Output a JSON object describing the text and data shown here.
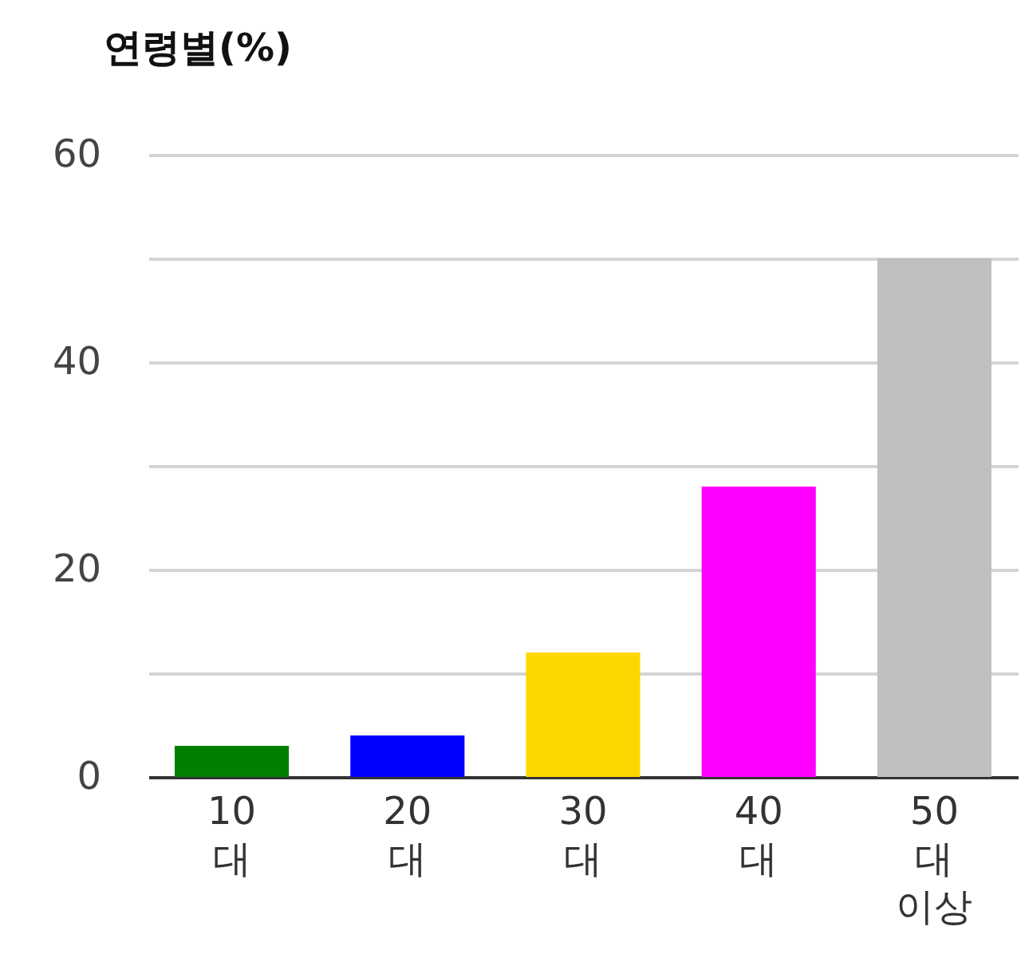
{
  "chart_data": {
    "type": "bar",
    "title": "연령별(%)",
    "categories": [
      "10대",
      "20대",
      "30대",
      "40대",
      "50대 이상"
    ],
    "values": [
      3,
      4,
      12,
      28,
      50
    ],
    "colors": [
      "#008000",
      "#0000ff",
      "#ffd700",
      "#ff00ff",
      "#c0c0c0"
    ],
    "ylim": [
      0,
      60
    ],
    "yticks": [
      0,
      {
        "value": 10,
        "label": null
      },
      20,
      {
        "value": 30,
        "label": null
      },
      40,
      {
        "value": 50,
        "label": null
      },
      60
    ],
    "grid": "y"
  }
}
